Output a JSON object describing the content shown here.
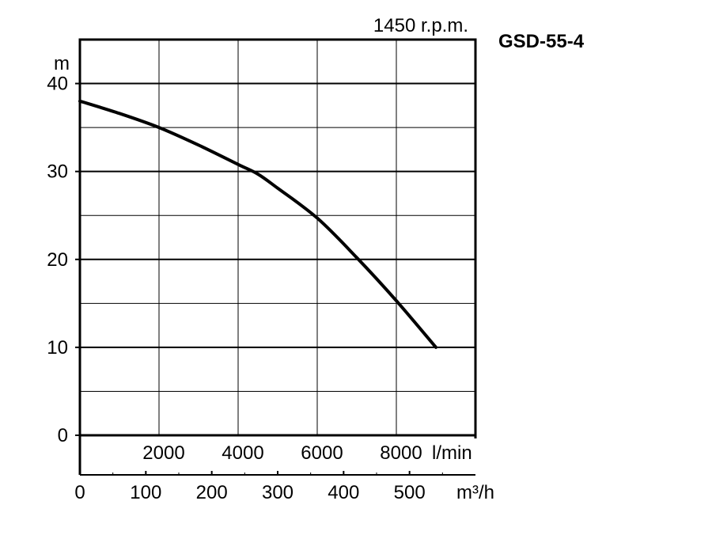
{
  "chart_data": {
    "type": "line",
    "title": "GSD-55-4",
    "subtitle": "1450 r.p.m.",
    "ylabel": "m",
    "ylim": [
      0,
      45
    ],
    "yticks": [
      0,
      10,
      20,
      30,
      40
    ],
    "xlim_lmin": [
      0,
      10000
    ],
    "xticks_lmin": [
      2000,
      4000,
      6000,
      8000
    ],
    "xunit_lmin": "l/min",
    "xticks_m3h": [
      0,
      100,
      200,
      300,
      400,
      500
    ],
    "xunit_m3h": "m³/h",
    "grid": true,
    "series": [
      {
        "x": [
          0,
          1000,
          2000,
          3000,
          4000,
          4500,
          5000,
          6000,
          7000,
          8000,
          9000
        ],
        "y": [
          38.0,
          36.6,
          35.0,
          33.0,
          30.8,
          29.7,
          28.1,
          24.7,
          20.2,
          15.3,
          10.0
        ]
      }
    ]
  }
}
